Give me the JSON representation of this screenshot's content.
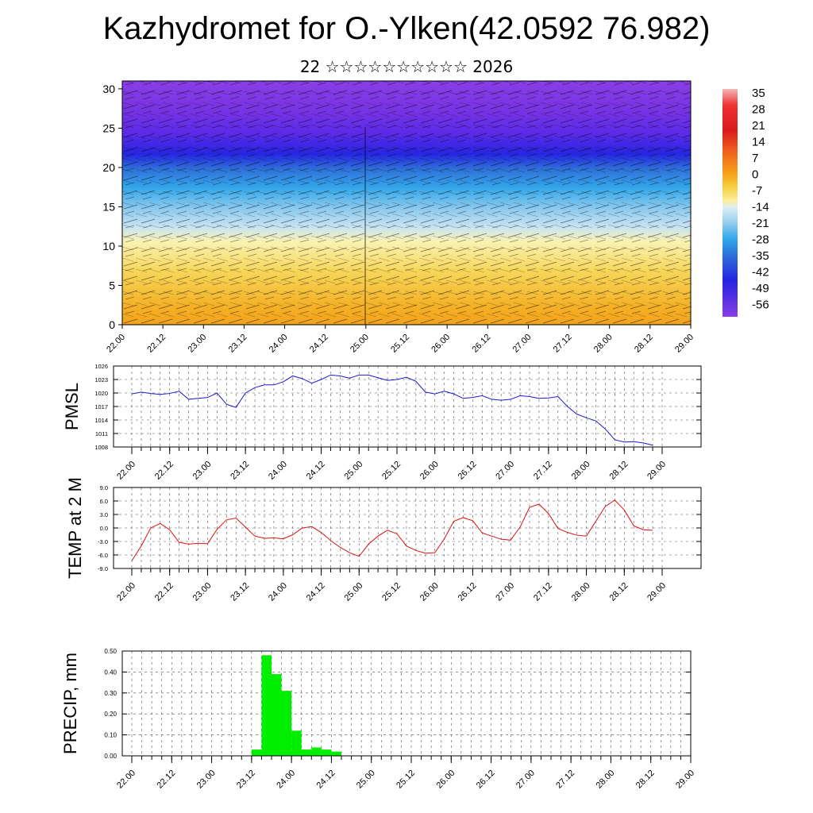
{
  "header": {
    "title": "Kazhydromet for O.-Ylken(42.0592 76.982)",
    "subtitle": "22 ☆☆☆☆☆☆☆☆☆☆ 2026"
  },
  "colors": {
    "pmsl_line": "#1a1acc",
    "temp_line": "#dd1111",
    "precip_bar": "#00ee00"
  },
  "chart_data": [
    {
      "type": "heatmap",
      "name": "cross-section",
      "x_ticks": [
        "22.00",
        "22.12",
        "23.00",
        "23.12",
        "24.00",
        "24.12",
        "25.00",
        "25.12",
        "26.00",
        "26.12",
        "27.00",
        "27.12",
        "28.00",
        "28.12",
        "29.00"
      ],
      "y_ticks": [
        "0",
        "5",
        "10",
        "15",
        "20",
        "25",
        "30"
      ],
      "ylim": [
        0,
        31
      ],
      "colorbar_labels": [
        "35",
        "28",
        "21",
        "14",
        "7",
        "0",
        "-7",
        "-14",
        "-21",
        "-28",
        "-35",
        "-42",
        "-49",
        "-56"
      ]
    },
    {
      "type": "line",
      "name": "pmsl",
      "ylabel": "PMSL",
      "ylim": [
        1008,
        1026
      ],
      "y_ticks": [
        "1026",
        "1023",
        "1020",
        "1017",
        "1014",
        "1011",
        "1008"
      ],
      "x_ticks": [
        "22.00",
        "22.12",
        "23.00",
        "23.12",
        "24.00",
        "24.12",
        "25.00",
        "25.12",
        "26.00",
        "26.12",
        "27.00",
        "27.12",
        "28.00",
        "28.12",
        "29.00"
      ],
      "x_range": [
        0,
        56
      ],
      "x": [
        0,
        1,
        2,
        3,
        4,
        5,
        6,
        7,
        8,
        9,
        10,
        11,
        12,
        13,
        14,
        15,
        16,
        17,
        18,
        19,
        20,
        21,
        22,
        23,
        24,
        25,
        26,
        27,
        28,
        29,
        30,
        31,
        32,
        33,
        34,
        35,
        36,
        37,
        38,
        39,
        40,
        41,
        42,
        43,
        44,
        45,
        46,
        47,
        48,
        49,
        50,
        51,
        52,
        53,
        54,
        55
      ],
      "values": [
        1019.8,
        1020.2,
        1019.9,
        1019.7,
        1019.9,
        1020.4,
        1018.6,
        1018.8,
        1019.0,
        1020.0,
        1017.5,
        1016.8,
        1020.0,
        1021.2,
        1021.8,
        1021.8,
        1022.5,
        1023.8,
        1023.2,
        1022.2,
        1023.0,
        1024.0,
        1023.8,
        1023.3,
        1024.0,
        1024.0,
        1023.4,
        1022.8,
        1023.0,
        1023.5,
        1022.6,
        1020.2,
        1019.8,
        1020.4,
        1019.8,
        1018.8,
        1019.0,
        1019.4,
        1018.6,
        1018.4,
        1018.6,
        1019.4,
        1019.2,
        1018.8,
        1018.9,
        1019.2,
        1017.0,
        1015.3,
        1014.5,
        1013.8,
        1012.0,
        1009.6,
        1009.1,
        1009.2,
        1008.9,
        1008.4
      ]
    },
    {
      "type": "line",
      "name": "temperature",
      "ylabel": "TEMP at 2 M",
      "ylim": [
        -9,
        9
      ],
      "y_ticks": [
        "9.0",
        "6.0",
        "3.0",
        "0.0",
        "-3.0",
        "-6.0",
        "-9.0"
      ],
      "x_ticks": [
        "22.00",
        "22.12",
        "23.00",
        "23.12",
        "24.00",
        "24.12",
        "25.00",
        "25.12",
        "26.00",
        "26.12",
        "27.00",
        "27.12",
        "28.00",
        "28.12",
        "29.00"
      ],
      "x_range": [
        0,
        56
      ],
      "x": [
        0,
        1,
        2,
        3,
        4,
        5,
        6,
        7,
        8,
        9,
        10,
        11,
        12,
        13,
        14,
        15,
        16,
        17,
        18,
        19,
        20,
        21,
        22,
        23,
        24,
        25,
        26,
        27,
        28,
        29,
        30,
        31,
        32,
        33,
        34,
        35,
        36,
        37,
        38,
        39,
        40,
        41,
        42,
        43,
        44,
        45,
        46,
        47,
        48,
        49,
        50,
        51,
        52,
        53,
        54,
        55
      ],
      "values": [
        -7.3,
        -4.0,
        0.0,
        1.0,
        -0.4,
        -3.2,
        -3.6,
        -3.4,
        -3.5,
        -0.3,
        1.8,
        2.2,
        0.2,
        -1.8,
        -2.3,
        -2.2,
        -2.4,
        -1.5,
        0.0,
        0.3,
        -1.0,
        -2.8,
        -4.3,
        -5.5,
        -6.3,
        -3.6,
        -1.8,
        -0.5,
        -1.3,
        -4.0,
        -5.0,
        -5.6,
        -5.5,
        -2.4,
        1.5,
        2.3,
        1.6,
        -1.1,
        -1.8,
        -2.5,
        -2.7,
        0.2,
        4.6,
        5.3,
        3.2,
        -0.1,
        -1.0,
        -1.6,
        -1.8,
        1.5,
        4.8,
        6.2,
        4.0,
        0.5,
        -0.4,
        -0.5
      ]
    },
    {
      "type": "bar",
      "name": "precipitation",
      "ylabel": "PRECIP, mm",
      "ylim": [
        0,
        0.5
      ],
      "y_ticks": [
        "0.50",
        "0.40",
        "0.30",
        "0.20",
        "0.10",
        "0.00"
      ],
      "x_ticks": [
        "22.00",
        "22.12",
        "23.00",
        "23.12",
        "24.00",
        "24.12",
        "25.00",
        "25.12",
        "26.00",
        "26.12",
        "27.00",
        "27.12",
        "28.00",
        "28.12",
        "29.00"
      ],
      "x_range": [
        0,
        56
      ],
      "x": [
        12.5,
        13.5,
        14.5,
        15.5,
        16.5,
        17.5,
        18.5,
        19.5,
        20.5
      ],
      "values": [
        0.03,
        0.48,
        0.39,
        0.31,
        0.12,
        0.03,
        0.04,
        0.03,
        0.02
      ]
    }
  ]
}
